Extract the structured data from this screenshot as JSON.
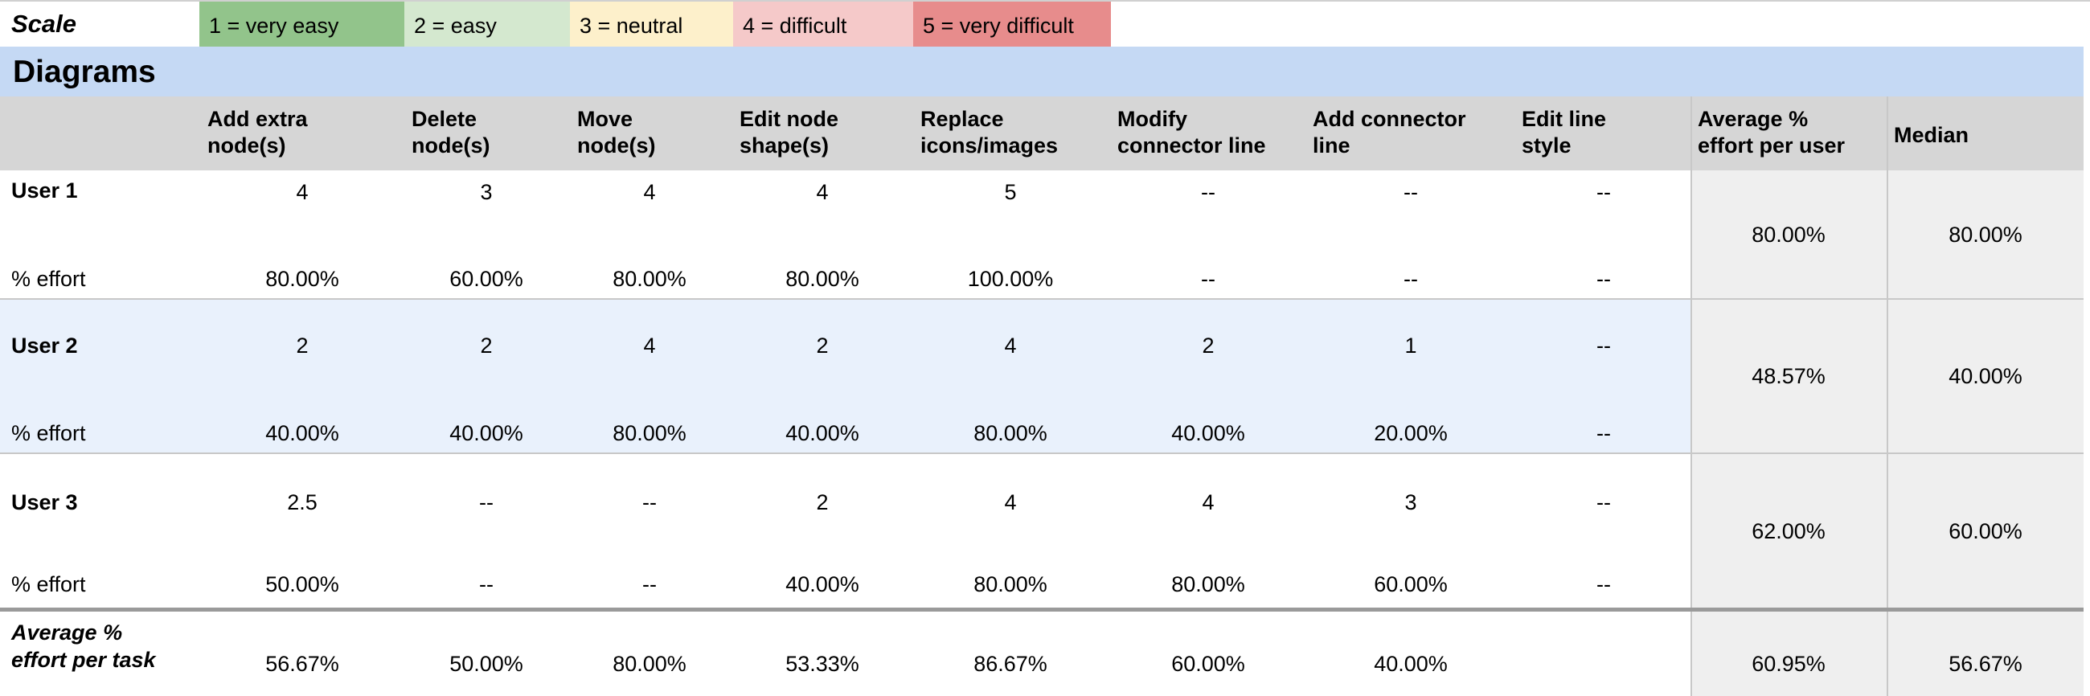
{
  "scale": {
    "label": "Scale",
    "levels": [
      {
        "text": "1 = very easy",
        "color": "#92c48b"
      },
      {
        "text": "2 = easy",
        "color": "#d4e8cf"
      },
      {
        "text": "3 = neutral",
        "color": "#fdf0cb"
      },
      {
        "text": "4 = difficult",
        "color": "#f5c9c9"
      },
      {
        "text": "5 = very difficult",
        "color": "#e78c8c"
      }
    ]
  },
  "section": {
    "title": "Diagrams"
  },
  "headers": {
    "tasks": [
      {
        "line1": "Add extra",
        "line2": "node(s)"
      },
      {
        "line1": "Delete",
        "line2": "node(s)"
      },
      {
        "line1": "Move",
        "line2": "node(s)"
      },
      {
        "line1": "Edit node",
        "line2": "shape(s)"
      },
      {
        "line1": "Replace",
        "line2": "icons/images"
      },
      {
        "line1": "Modify",
        "line2": "connector line"
      },
      {
        "line1": "Add connector",
        "line2": "line"
      },
      {
        "line1": "Edit line",
        "line2": "style"
      }
    ],
    "avg": {
      "line1": "Average %",
      "line2": "effort per user"
    },
    "median": {
      "line1": "Median"
    }
  },
  "users": [
    {
      "name": "User 1",
      "effort_label": "% effort",
      "scores": [
        "4",
        "3",
        "4",
        "4",
        "5",
        "--",
        "--",
        "--"
      ],
      "efforts": [
        "80.00%",
        "60.00%",
        "80.00%",
        "80.00%",
        "100.00%",
        "--",
        "--",
        "--"
      ],
      "avg": "80.00%",
      "median": "80.00%"
    },
    {
      "name": "User 2",
      "effort_label": "% effort",
      "scores": [
        "2",
        "2",
        "4",
        "2",
        "4",
        "2",
        "1",
        "--"
      ],
      "efforts": [
        "40.00%",
        "40.00%",
        "80.00%",
        "40.00%",
        "80.00%",
        "40.00%",
        "20.00%",
        "--"
      ],
      "avg": "48.57%",
      "median": "40.00%"
    },
    {
      "name": "User 3",
      "effort_label": "% effort",
      "scores": [
        "2.5",
        "--",
        "--",
        "2",
        "4",
        "4",
        "3",
        "--"
      ],
      "efforts": [
        "50.00%",
        "--",
        "--",
        "40.00%",
        "80.00%",
        "80.00%",
        "60.00%",
        "--"
      ],
      "avg": "62.00%",
      "median": "60.00%"
    }
  ],
  "footer": {
    "label_line1": "Average %",
    "label_line2": "effort  per task",
    "values": [
      "56.67%",
      "50.00%",
      "80.00%",
      "53.33%",
      "86.67%",
      "60.00%",
      "40.00%"
    ],
    "avg": "60.95%",
    "median": "56.67%"
  }
}
